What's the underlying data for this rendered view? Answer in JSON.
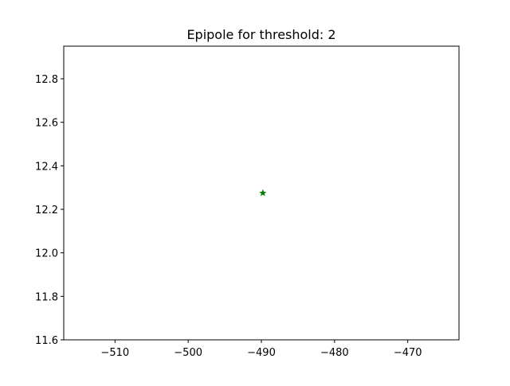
{
  "chart_data": {
    "type": "scatter",
    "title": "Epipole for threshold: 2",
    "xlabel": "",
    "ylabel": "",
    "xlim": [
      -517,
      -463
    ],
    "ylim": [
      11.6,
      12.95
    ],
    "xticks": [
      -510,
      -500,
      -490,
      -480,
      -470
    ],
    "xtick_labels": [
      "−510",
      "−500",
      "−490",
      "−480",
      "−470"
    ],
    "yticks": [
      11.6,
      11.8,
      12.0,
      12.2,
      12.4,
      12.6,
      12.8
    ],
    "ytick_labels": [
      "11.6",
      "11.8",
      "12.0",
      "12.2",
      "12.4",
      "12.6",
      "12.8"
    ],
    "grid": false,
    "legend": "none",
    "series": [
      {
        "marker": "star",
        "color": "#008000",
        "points": [
          {
            "x": -489.8,
            "y": 12.275
          }
        ]
      }
    ]
  }
}
